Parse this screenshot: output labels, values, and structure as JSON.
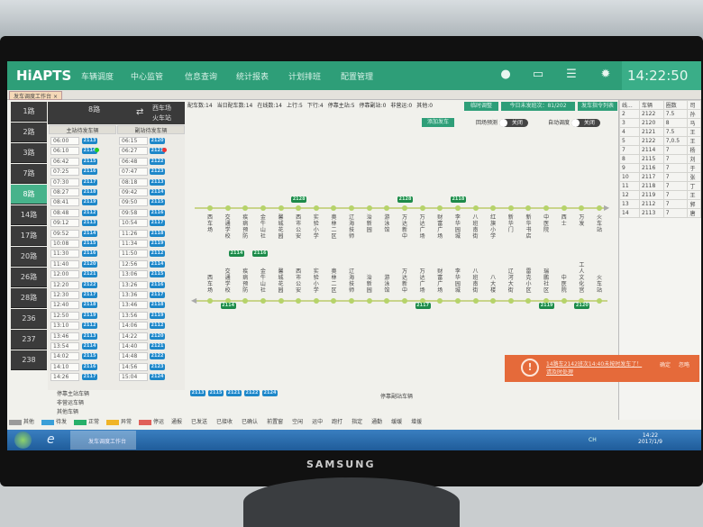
{
  "app": {
    "logo": "HiAPTS",
    "nav": [
      "车辆调度",
      "中心监管",
      "信息查询",
      "统计报表",
      "计划排班",
      "配置管理"
    ],
    "clock": "14:22:50",
    "tab": "发车调度工作台",
    "tab_close": "×",
    "icons": [
      "alert-icon",
      "message-icon",
      "menu-icon",
      "gear-icon"
    ]
  },
  "routes": [
    {
      "label": "1路"
    },
    {
      "label": "2路"
    },
    {
      "label": "3路"
    },
    {
      "label": "7路"
    },
    {
      "label": "8路",
      "selected": true
    },
    {
      "label": "14路"
    },
    {
      "label": "17路"
    },
    {
      "label": "20路"
    },
    {
      "label": "26路"
    },
    {
      "label": "28路"
    },
    {
      "label": "236"
    },
    {
      "label": "237"
    },
    {
      "label": "238"
    }
  ],
  "dispatch": {
    "route": "8路",
    "terminal_a": "西车场",
    "terminal_b": "火车站",
    "main_header": "主站待发车辆",
    "sub_header": "副站待发车辆",
    "main": [
      [
        "06:00",
        "2113"
      ],
      [
        "06:10",
        "2114"
      ],
      [
        "06:42",
        "2115"
      ],
      [
        "07:25",
        "2116"
      ],
      [
        "07:30",
        "2117"
      ],
      [
        "08:27",
        "2118"
      ],
      [
        "08:41",
        "2119"
      ],
      [
        "08:48",
        "2112"
      ],
      [
        "09:12",
        "2113"
      ],
      [
        "09:52",
        "2114"
      ],
      [
        "10:08",
        "2115"
      ],
      [
        "11:30",
        "2116"
      ],
      [
        "11:40",
        "2120"
      ],
      [
        "12:00",
        "2121"
      ],
      [
        "12:20",
        "2122"
      ],
      [
        "12:30",
        "2117"
      ],
      [
        "12:40",
        "2118"
      ],
      [
        "12:50",
        "2119"
      ],
      [
        "13:10",
        "2112"
      ],
      [
        "13:46",
        "2113"
      ],
      [
        "13:54",
        "2114"
      ],
      [
        "14:02",
        "2115"
      ],
      [
        "14:10",
        "2116"
      ],
      [
        "14:26",
        "2117"
      ]
    ],
    "sub": [
      [
        "06:15",
        "2120"
      ],
      [
        "06:27",
        "2121"
      ],
      [
        "06:48",
        "2122"
      ],
      [
        "07:47",
        "2123"
      ],
      [
        "08:18",
        "2113"
      ],
      [
        "09:42",
        "2114"
      ],
      [
        "09:50",
        "2115"
      ],
      [
        "09:58",
        "2116"
      ],
      [
        "10:54",
        "2117"
      ],
      [
        "11:26",
        "2118"
      ],
      [
        "11:34",
        "2119"
      ],
      [
        "11:50",
        "2112"
      ],
      [
        "12:56",
        "2114"
      ],
      [
        "13:06",
        "2115"
      ],
      [
        "13:26",
        "2116"
      ],
      [
        "13:36",
        "2117"
      ],
      [
        "13:46",
        "2118"
      ],
      [
        "13:56",
        "2119"
      ],
      [
        "14:06",
        "2112"
      ],
      [
        "14:22",
        "2120"
      ],
      [
        "14:40",
        "2121"
      ],
      [
        "14:48",
        "2122"
      ],
      [
        "14:56",
        "2123"
      ],
      [
        "15:04",
        "2124"
      ]
    ],
    "groups": [
      "停靠主站车辆",
      "非营运车辆",
      "其他车辆"
    ]
  },
  "stats": [
    "配车数:14",
    "当日配车数:14",
    "在线数:14",
    "上行:5",
    "下行:4",
    "停靠主站:5",
    "停靠副站:0",
    "非营运:0",
    "其他:0"
  ],
  "buttons": {
    "temp": "临时调整",
    "remaining": "今日未发班次：81/202",
    "list": "发车指令列表",
    "add": "添加发车"
  },
  "toggles": [
    {
      "label": "回场预测",
      "state": "关闭"
    },
    {
      "label": "自动调度",
      "state": "关闭"
    }
  ],
  "upline": {
    "stations": [
      "西车场",
      "交通学校",
      "疾病预防",
      "金牛山社",
      "馨城花园",
      "西市公安",
      "实验小学",
      "奥林二区",
      "辽海技师",
      "治新园",
      "游泳馆",
      "万达新中",
      "万达广场",
      "财富广场",
      "李华园城",
      "八班南街",
      "红旗小学",
      "新华门",
      "新华书店",
      "中医院",
      "西士",
      "万发",
      "火车站"
    ],
    "buses": [
      {
        "id": "2128",
        "at": 5
      },
      {
        "id": "2128",
        "at": 11
      },
      {
        "id": "2118",
        "at": 14
      }
    ]
  },
  "downline": {
    "stations": [
      "西车场",
      "交通学校",
      "疾病预防",
      "金牛山社",
      "馨城花园",
      "西市公安",
      "实验小学",
      "奥林二区",
      "辽海技师",
      "治新园",
      "游泳馆",
      "万达新中",
      "万达广场",
      "财富广场",
      "李华园城",
      "八班南街",
      "八大楼",
      "辽河大街",
      "雷克小区",
      "瑞鹏社区",
      "中医院",
      "工人文化宫",
      "火车站"
    ],
    "buses": [
      {
        "id": "2114",
        "at": 1
      },
      {
        "id": "2117",
        "at": 12
      },
      {
        "id": "2119",
        "at": 19
      },
      {
        "id": "2120",
        "at": 21
      }
    ]
  },
  "between_buses": [
    "2114",
    "2116"
  ],
  "main_station_buses": [
    "2113",
    "2115",
    "2121",
    "2122",
    "2124"
  ],
  "sub_station_label": "停靠副站车辆",
  "table": {
    "headers": [
      "线...",
      "车辆",
      "圈数",
      "司"
    ],
    "rows": [
      [
        "2",
        "2122",
        "7.5",
        "孙"
      ],
      [
        "3",
        "2120",
        "8",
        "马"
      ],
      [
        "4",
        "2121",
        "7.5",
        "王"
      ],
      [
        "5",
        "2122",
        "7,0.5",
        "王"
      ],
      [
        "7",
        "2114",
        "7",
        "杨"
      ],
      [
        "8",
        "2115",
        "7",
        "刘"
      ],
      [
        "9",
        "2116",
        "7",
        "于"
      ],
      [
        "10",
        "2117",
        "7",
        "张"
      ],
      [
        "11",
        "2118",
        "7",
        "丁"
      ],
      [
        "12",
        "2119",
        "7",
        "王"
      ],
      [
        "13",
        "2112",
        "7",
        "郭"
      ],
      [
        "14",
        "2113",
        "7",
        "唐"
      ]
    ]
  },
  "notification": {
    "text": "14路车2142班次14:40未按时发车了！",
    "text2": "请及时处理",
    "action1": "确定",
    "action2": "忽略"
  },
  "legend": [
    {
      "label": "其他",
      "color": "#9a9a9a"
    },
    {
      "label": "待发",
      "color": "#3a9fd8"
    },
    {
      "label": "正常",
      "color": "#27b06a"
    },
    {
      "label": "异常",
      "color": "#f0b428"
    },
    {
      "label": "停运",
      "color": "#e0605a"
    }
  ],
  "legend2": [
    "通报",
    "已发送",
    "已接收",
    "已确认",
    "前置窗",
    "空闲",
    "运中",
    "跑打",
    "指定",
    "通勤",
    "缓缓",
    "增援"
  ],
  "taskbar": {
    "app": "发车调度工作台",
    "time": "14:22",
    "date": "2017/1/9",
    "lang": "CH"
  },
  "monitor_brand": "SAMSUNG"
}
